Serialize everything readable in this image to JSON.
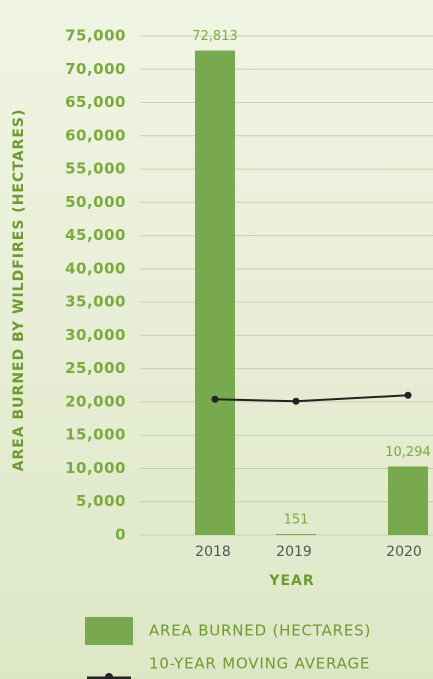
{
  "chart_data": {
    "type": "bar",
    "y_label": "AREA BURNED BY WILDFIRES (HECTARES)",
    "x_label": "YEAR",
    "categories": [
      "2018",
      "2019",
      "2020"
    ],
    "series": [
      {
        "name": "AREA BURNED (HECTARES)",
        "type": "bar",
        "color": "#78a94f",
        "values": [
          72813,
          151,
          10294
        ],
        "value_labels": [
          "72,813",
          "151",
          "10,294"
        ]
      },
      {
        "name": "10-YEAR MOVING AVERAGE",
        "type": "line",
        "color": "#222222",
        "values": [
          20400,
          20100,
          21000
        ]
      }
    ],
    "ylim": [
      0,
      75000
    ],
    "yticks": [
      0,
      {
        "value": 5000,
        "label": "5,000"
      },
      {
        "value": 10000,
        "label": "10,000"
      },
      {
        "value": 15000,
        "label": "15,000"
      },
      {
        "value": 20000,
        "label": "20,000"
      },
      {
        "value": 25000,
        "label": "25,000"
      },
      {
        "value": 30000,
        "label": "30,000"
      },
      {
        "value": 35000,
        "label": "35,000"
      },
      {
        "value": 40000,
        "label": "40,000"
      },
      {
        "value": 45000,
        "label": "45,000"
      },
      {
        "value": 50000,
        "label": "50,000"
      },
      {
        "value": 55000,
        "label": "55,000"
      },
      {
        "value": 60000,
        "label": "60,000"
      },
      {
        "value": 65000,
        "label": "65,000"
      },
      {
        "value": 70000,
        "label": "70,000"
      },
      {
        "value": 75000,
        "label": "75,000"
      }
    ],
    "grid": true,
    "legend": "bottom"
  }
}
